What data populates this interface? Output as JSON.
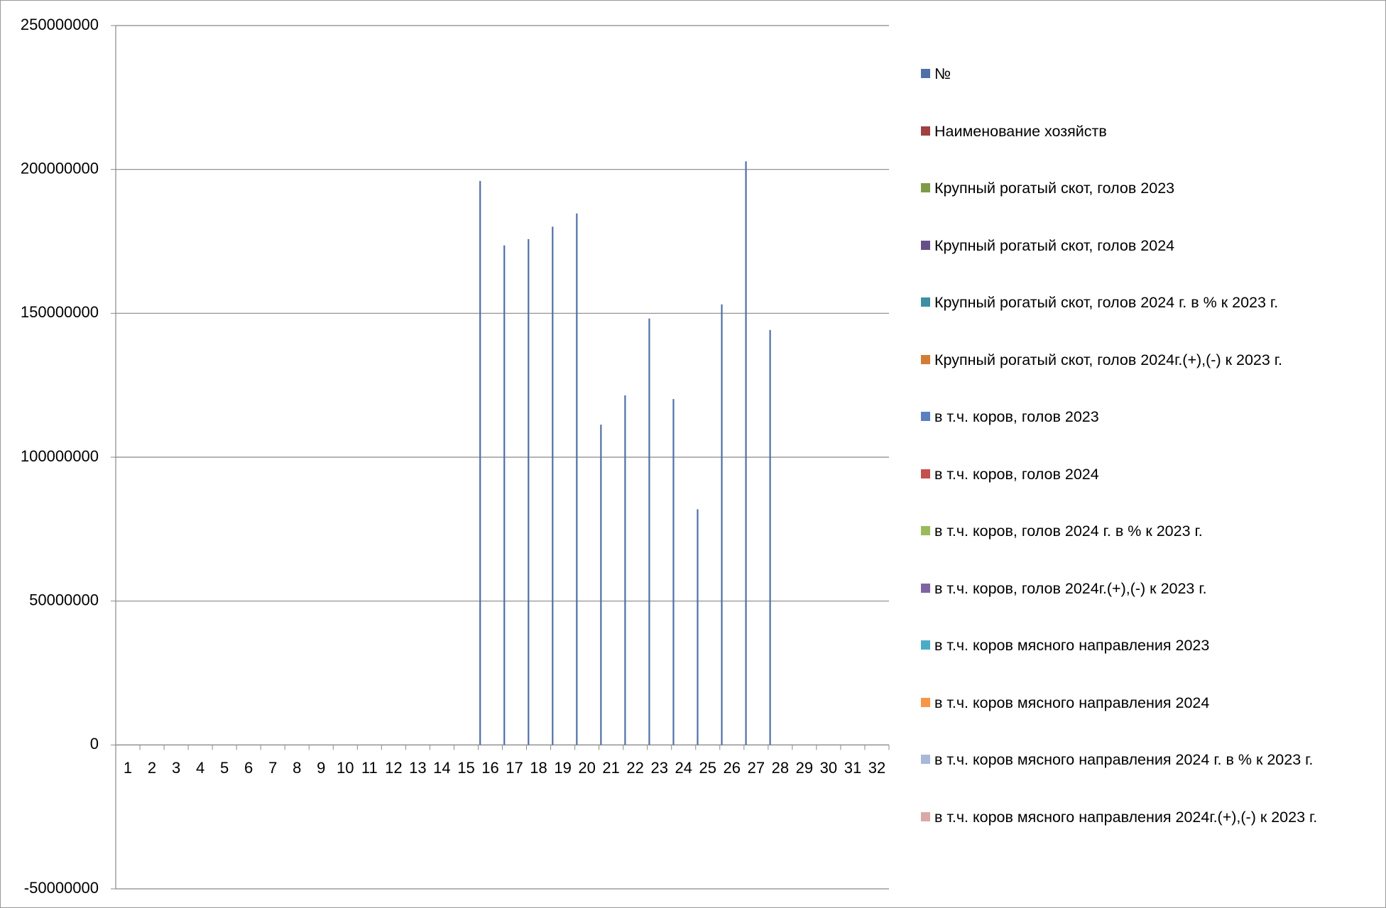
{
  "chart_data": {
    "type": "bar",
    "categories": [
      "1",
      "2",
      "3",
      "4",
      "5",
      "6",
      "7",
      "8",
      "9",
      "10",
      "11",
      "12",
      "13",
      "14",
      "15",
      "16",
      "17",
      "18",
      "19",
      "20",
      "21",
      "22",
      "23",
      "24",
      "25",
      "26",
      "27",
      "28",
      "29",
      "30",
      "31",
      "32"
    ],
    "series": [
      {
        "name": "№",
        "color": "#4f6fa8",
        "values": [
          null,
          null,
          null,
          null,
          null,
          null,
          null,
          null,
          null,
          null,
          null,
          null,
          null,
          null,
          null,
          196000000,
          173600000,
          175800000,
          180100000,
          184700000,
          111300000,
          121500000,
          148200000,
          120200000,
          81900000,
          153100000,
          202800000,
          144200000,
          null,
          null,
          null,
          null
        ]
      },
      {
        "name": "Наименование хозяйств",
        "color": "#a04040",
        "values": [
          null,
          null,
          null,
          null,
          null,
          null,
          null,
          null,
          null,
          null,
          null,
          null,
          null,
          null,
          null,
          null,
          null,
          null,
          null,
          null,
          null,
          null,
          null,
          null,
          null,
          null,
          null,
          null,
          null,
          null,
          null,
          null
        ]
      },
      {
        "name": "Крупный рогатый скот, голов 2023",
        "color": "#7f9a48",
        "values": [
          null,
          null,
          null,
          null,
          null,
          null,
          null,
          null,
          null,
          null,
          null,
          null,
          null,
          null,
          null,
          null,
          null,
          null,
          null,
          null,
          null,
          null,
          null,
          null,
          null,
          null,
          null,
          null,
          null,
          null,
          null,
          null
        ]
      },
      {
        "name": "Крупный рогатый скот, голов 2024",
        "color": "#67508a",
        "values": [
          null,
          null,
          null,
          null,
          null,
          null,
          null,
          null,
          null,
          null,
          null,
          null,
          null,
          null,
          null,
          null,
          null,
          null,
          null,
          null,
          null,
          null,
          null,
          null,
          null,
          null,
          null,
          null,
          null,
          null,
          null,
          null
        ]
      },
      {
        "name": "Крупный рогатый скот, голов 2024 г. в % к 2023 г.",
        "color": "#3d8fa3",
        "values": [
          null,
          null,
          null,
          null,
          null,
          null,
          null,
          null,
          null,
          null,
          null,
          null,
          null,
          null,
          null,
          null,
          null,
          null,
          null,
          null,
          null,
          null,
          null,
          null,
          null,
          null,
          null,
          null,
          null,
          null,
          null,
          null
        ]
      },
      {
        "name": "Крупный рогатый скот, голов 2024г.(+),(-) к 2023 г.",
        "color": "#d17d36",
        "values": [
          null,
          null,
          null,
          null,
          null,
          null,
          null,
          null,
          null,
          null,
          null,
          null,
          null,
          null,
          null,
          null,
          null,
          null,
          null,
          null,
          null,
          null,
          null,
          null,
          null,
          null,
          null,
          null,
          null,
          null,
          null,
          null
        ]
      },
      {
        "name": "в т.ч. коров, голов 2023",
        "color": "#5b80c0",
        "values": [
          null,
          null,
          null,
          null,
          null,
          null,
          null,
          null,
          null,
          null,
          null,
          null,
          null,
          null,
          null,
          null,
          null,
          null,
          null,
          null,
          null,
          null,
          null,
          null,
          null,
          null,
          null,
          null,
          null,
          null,
          null,
          null
        ]
      },
      {
        "name": "в т.ч. коров, голов 2024",
        "color": "#c4504e",
        "values": [
          null,
          null,
          null,
          null,
          null,
          null,
          null,
          null,
          null,
          null,
          null,
          null,
          null,
          null,
          null,
          null,
          null,
          null,
          null,
          null,
          null,
          null,
          null,
          null,
          null,
          null,
          null,
          null,
          null,
          null,
          null,
          null
        ]
      },
      {
        "name": "в т.ч. коров, голов 2024 г. в % к 2023 г.",
        "color": "#9bbb59",
        "values": [
          null,
          null,
          null,
          null,
          null,
          null,
          null,
          null,
          null,
          null,
          null,
          null,
          null,
          null,
          null,
          null,
          null,
          null,
          null,
          null,
          null,
          null,
          null,
          null,
          null,
          null,
          null,
          null,
          null,
          null,
          null,
          null
        ]
      },
      {
        "name": "в т.ч. коров, голов 2024г.(+),(-) к 2023 г.",
        "color": "#8064a2",
        "values": [
          null,
          null,
          null,
          null,
          null,
          null,
          null,
          null,
          null,
          null,
          null,
          null,
          null,
          null,
          null,
          null,
          null,
          null,
          null,
          null,
          null,
          null,
          null,
          null,
          null,
          null,
          null,
          null,
          null,
          null,
          null,
          null
        ]
      },
      {
        "name": "в т.ч. коров мясного направления 2023",
        "color": "#4bacc6",
        "values": [
          null,
          null,
          null,
          null,
          null,
          null,
          null,
          null,
          null,
          null,
          null,
          null,
          null,
          null,
          null,
          null,
          null,
          null,
          null,
          null,
          null,
          null,
          null,
          null,
          null,
          null,
          null,
          null,
          null,
          null,
          null,
          null
        ]
      },
      {
        "name": "в т.ч. коров мясного направления 2024",
        "color": "#f79646",
        "values": [
          null,
          null,
          null,
          null,
          null,
          null,
          null,
          null,
          null,
          null,
          null,
          null,
          null,
          null,
          null,
          null,
          null,
          null,
          null,
          null,
          null,
          null,
          null,
          null,
          null,
          null,
          null,
          null,
          null,
          null,
          null,
          null
        ]
      },
      {
        "name": "в т.ч. коров мясного направления 2024 г. в % к 2023 г.",
        "color": "#a9b8d8",
        "values": [
          null,
          null,
          null,
          null,
          null,
          null,
          null,
          null,
          null,
          null,
          null,
          null,
          null,
          null,
          null,
          null,
          null,
          null,
          null,
          null,
          null,
          null,
          null,
          null,
          null,
          null,
          null,
          null,
          null,
          null,
          null,
          null
        ]
      },
      {
        "name": "в т.ч. коров мясного направления 2024г.(+),(-) к 2023 г.",
        "color": "#d9a9a8",
        "values": [
          null,
          null,
          null,
          null,
          null,
          null,
          null,
          null,
          null,
          null,
          null,
          null,
          null,
          null,
          null,
          null,
          null,
          null,
          null,
          null,
          null,
          null,
          null,
          null,
          null,
          null,
          null,
          null,
          null,
          null,
          null,
          null
        ]
      }
    ],
    "ylim": [
      -50000000,
      250000000
    ],
    "yticks": [
      -50000000,
      0,
      50000000,
      100000000,
      150000000,
      200000000,
      250000000
    ],
    "grid": true,
    "legend": "right"
  }
}
